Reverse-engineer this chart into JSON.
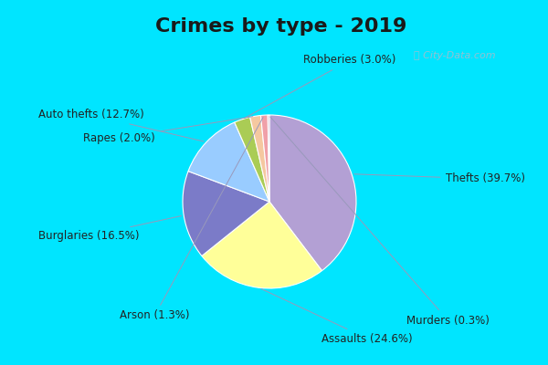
{
  "title": "Crimes by type - 2019",
  "title_fontsize": 16,
  "title_fontweight": "bold",
  "labels": [
    "Thefts",
    "Assaults",
    "Burglaries",
    "Auto thefts",
    "Robberies",
    "Rapes",
    "Arson",
    "Murders"
  ],
  "values": [
    39.7,
    24.6,
    16.5,
    12.7,
    3.0,
    2.0,
    1.3,
    0.3
  ],
  "colors": [
    "#b3a0d4",
    "#ffff99",
    "#7b7bc8",
    "#99ccff",
    "#aacc55",
    "#f5c8a0",
    "#f0a0a8",
    "#c8a0b8"
  ],
  "bg_cyan": "#00e5ff",
  "bg_inner": "#ddf0e8",
  "startangle": 90,
  "watermark": "City-Data.com",
  "label_color": "#222222",
  "line_color": "#9999bb",
  "label_fontsize": 8.5
}
